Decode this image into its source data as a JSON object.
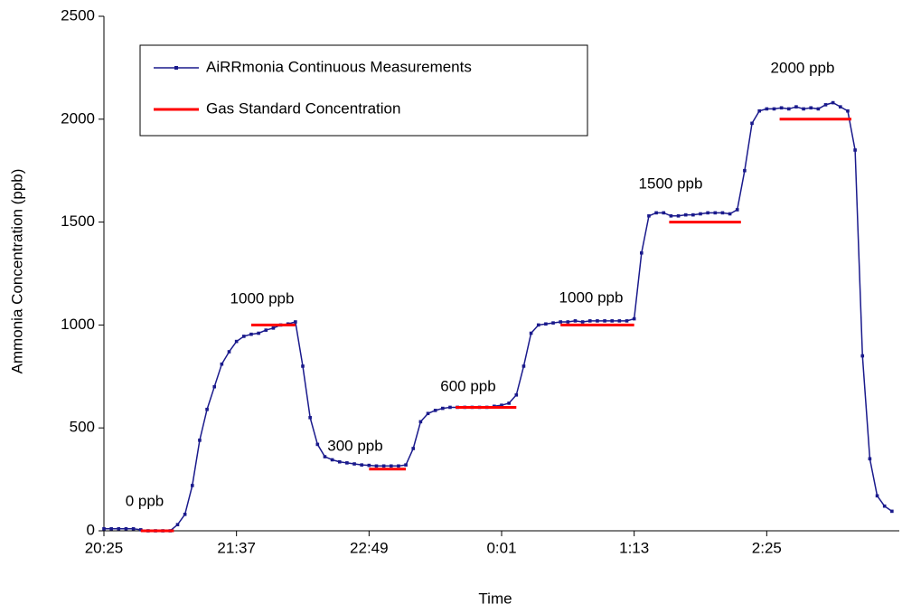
{
  "chart_data": {
    "type": "line",
    "y_label": "Ammonia Concentration (ppb)",
    "x_label": "Time",
    "ylim": [
      0,
      2500
    ],
    "yticks": [
      0,
      500,
      1000,
      1500,
      2000,
      2500
    ],
    "xlim": [
      1225,
      1657
    ],
    "xticks": [
      {
        "value": 1225,
        "label": "20:25"
      },
      {
        "value": 1297,
        "label": "21:37"
      },
      {
        "value": 1369,
        "label": "22:49"
      },
      {
        "value": 1441,
        "label": "0:01"
      },
      {
        "value": 1513,
        "label": "1:13"
      },
      {
        "value": 1585,
        "label": "2:25"
      }
    ],
    "legend": "top-left",
    "annotations": [
      "0 ppb",
      "1000 ppb",
      "300 ppb",
      "600 ppb",
      "1000 ppb",
      "1500 ppb",
      "2000 ppb"
    ],
    "series": [
      {
        "name": "AiRRmonia Continuous Measurements",
        "color": "#1a1a8c",
        "marker": true,
        "x": [
          1225,
          1229,
          1233,
          1237,
          1241,
          1245,
          1249,
          1253,
          1257,
          1261,
          1265,
          1269,
          1273,
          1277,
          1281,
          1285,
          1289,
          1293,
          1297,
          1301,
          1305,
          1309,
          1313,
          1317,
          1321,
          1325,
          1329,
          1333,
          1337,
          1341,
          1345,
          1349,
          1353,
          1357,
          1361,
          1365,
          1369,
          1373,
          1377,
          1381,
          1385,
          1389,
          1393,
          1397,
          1401,
          1405,
          1409,
          1413,
          1417,
          1421,
          1425,
          1429,
          1433,
          1437,
          1441,
          1445,
          1449,
          1453,
          1457,
          1461,
          1465,
          1469,
          1473,
          1477,
          1481,
          1485,
          1489,
          1493,
          1497,
          1501,
          1505,
          1509,
          1513,
          1517,
          1521,
          1525,
          1529,
          1533,
          1537,
          1541,
          1545,
          1549,
          1553,
          1557,
          1561,
          1565,
          1569,
          1573,
          1577,
          1581,
          1585,
          1589,
          1593,
          1597,
          1601,
          1605,
          1609,
          1613,
          1617,
          1621,
          1625,
          1629,
          1633,
          1637,
          1641,
          1645,
          1649,
          1653
        ],
        "values": [
          10,
          10,
          10,
          10,
          10,
          5,
          0,
          0,
          0,
          0,
          30,
          80,
          220,
          440,
          590,
          700,
          810,
          870,
          920,
          945,
          955,
          960,
          975,
          985,
          1000,
          1005,
          1015,
          800,
          550,
          420,
          360,
          345,
          335,
          330,
          325,
          320,
          318,
          315,
          315,
          315,
          315,
          320,
          400,
          530,
          570,
          585,
          595,
          600,
          600,
          600,
          600,
          600,
          600,
          605,
          610,
          620,
          660,
          800,
          960,
          1000,
          1005,
          1010,
          1015,
          1015,
          1020,
          1015,
          1020,
          1020,
          1020,
          1020,
          1020,
          1020,
          1030,
          1350,
          1530,
          1545,
          1545,
          1530,
          1530,
          1535,
          1535,
          1540,
          1545,
          1545,
          1545,
          1540,
          1560,
          1750,
          1980,
          2040,
          2050,
          2050,
          2055,
          2050,
          2060,
          2050,
          2055,
          2050,
          2070,
          2080,
          2060,
          2040,
          1850,
          850,
          350,
          170,
          120,
          95
        ]
      },
      {
        "name": "Gas Standard Concentration",
        "color": "#ff0000",
        "marker": false,
        "x": [
          1245,
          1263,
          null,
          1305,
          1329,
          null,
          1369,
          1389,
          null,
          1416,
          1449,
          null,
          1473,
          1513,
          null,
          1532,
          1571,
          null,
          1592,
          1631
        ],
        "values": [
          0,
          0,
          null,
          1000,
          1000,
          null,
          300,
          300,
          null,
          600,
          600,
          null,
          1000,
          1000,
          null,
          1500,
          1500,
          null,
          2000,
          2000
        ]
      }
    ]
  }
}
